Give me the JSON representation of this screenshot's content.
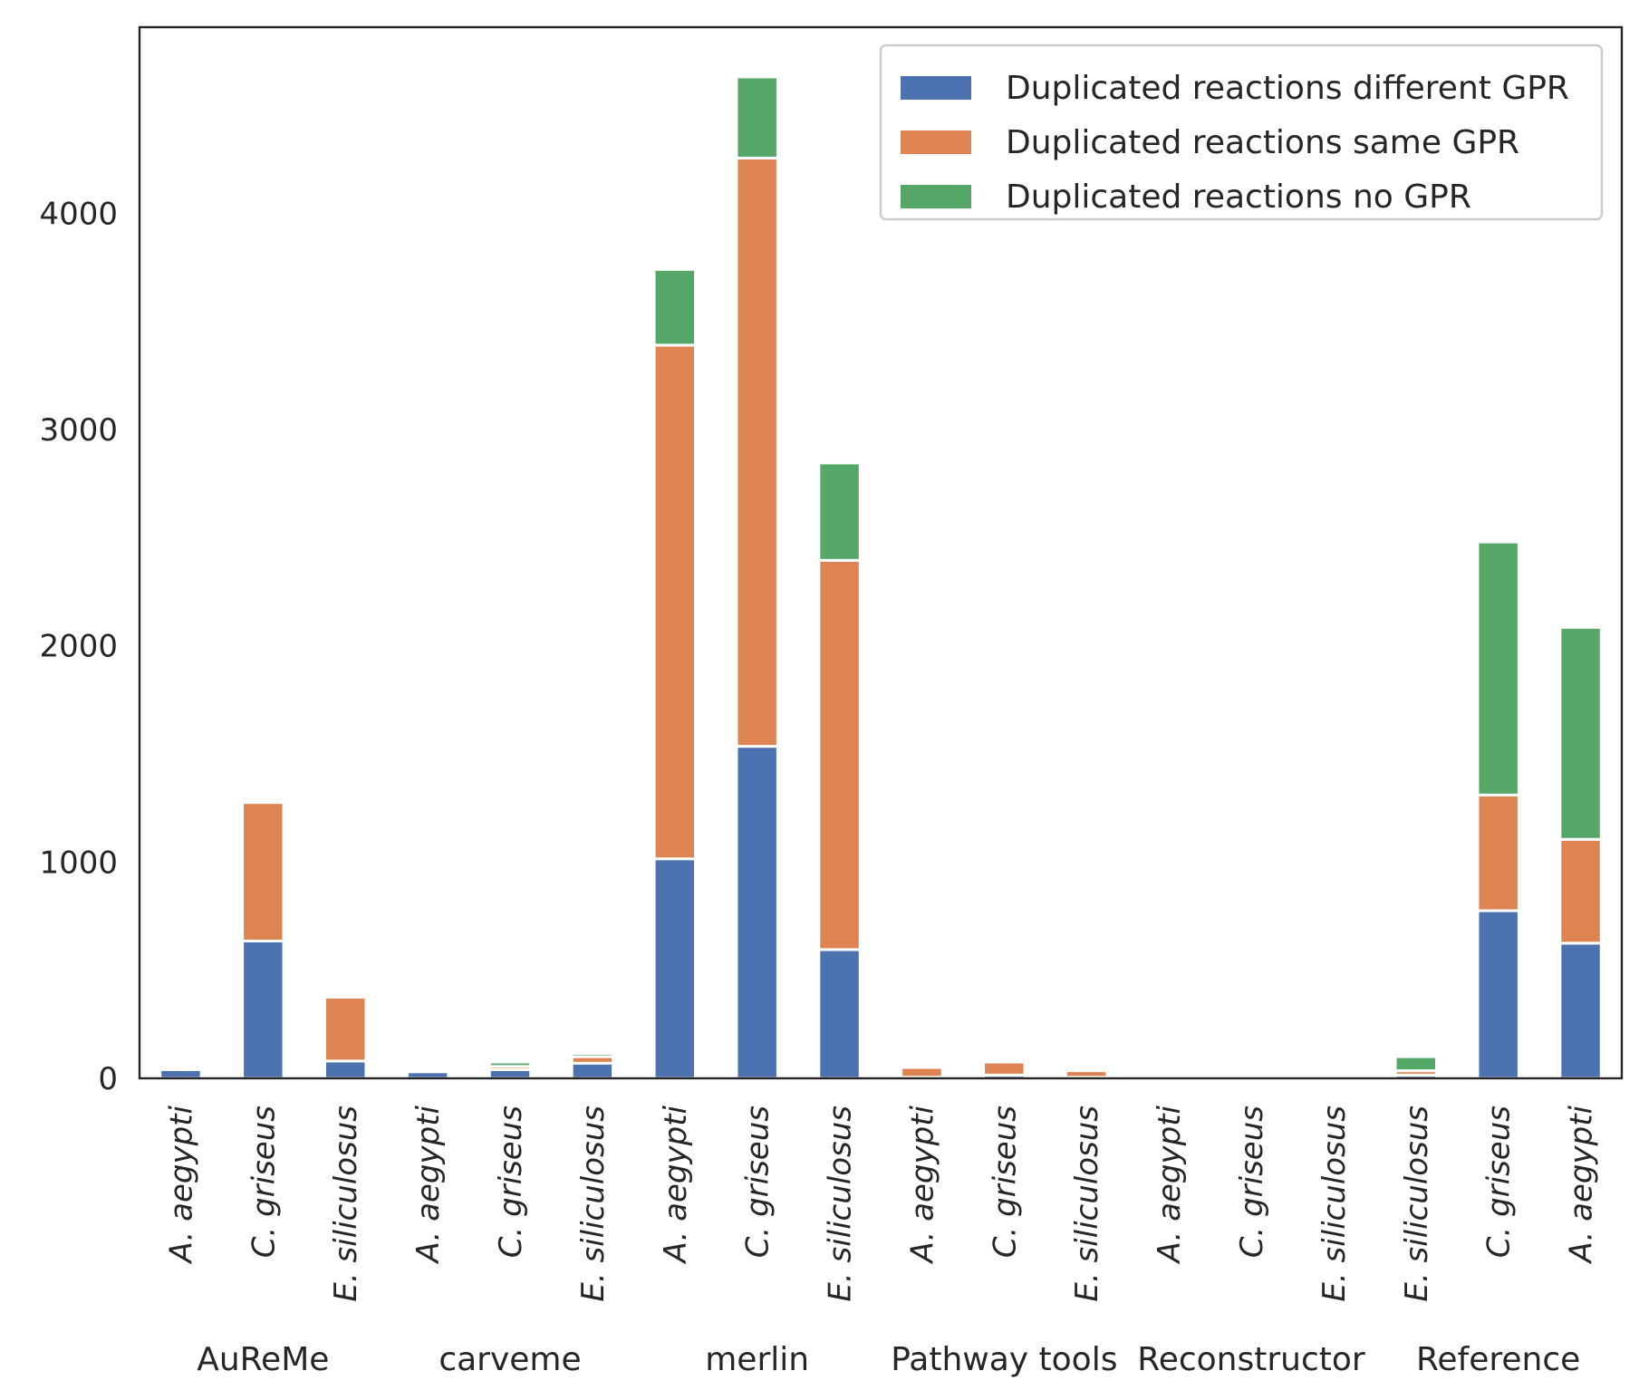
{
  "chart_data": {
    "type": "bar",
    "stacked": true,
    "title": "",
    "xlabel": "",
    "ylabel": "",
    "ylim": [
      0,
      4860
    ],
    "y_ticks": [
      0,
      1000,
      2000,
      3000,
      4000
    ],
    "grid": false,
    "legend_position": "top-right",
    "categories": [
      "A. aegypti",
      "C. griseus",
      "E. siliculosus",
      "A. aegypti",
      "C. griseus",
      "E. siliculosus",
      "A. aegypti",
      "C. griseus",
      "E. siliculosus",
      "A. aegypti",
      "C. griseus",
      "E. siliculosus",
      "A. aegypti",
      "C. griseus",
      "E. siliculosus",
      "E. siliculosus",
      "C. griseus",
      "A. aegypti"
    ],
    "groups": [
      {
        "name": "AuReMe",
        "start": 0,
        "end": 2
      },
      {
        "name": "carveme",
        "start": 3,
        "end": 5
      },
      {
        "name": "merlin",
        "start": 6,
        "end": 8
      },
      {
        "name": "Pathway tools",
        "start": 9,
        "end": 11
      },
      {
        "name": "Reconstructor",
        "start": 12,
        "end": 14
      },
      {
        "name": "Reference",
        "start": 15,
        "end": 17
      }
    ],
    "series": [
      {
        "name": "Duplicated reactions different GPR",
        "color": "#4c72b0",
        "values": [
          40,
          635,
          80,
          30,
          40,
          70,
          1015,
          1535,
          595,
          5,
          15,
          5,
          0,
          0,
          0,
          15,
          775,
          625
        ]
      },
      {
        "name": "Duplicated reactions same GPR",
        "color": "#dd8452",
        "values": [
          0,
          640,
          295,
          0,
          15,
          30,
          2375,
          2720,
          1800,
          45,
          60,
          30,
          0,
          0,
          0,
          20,
          535,
          480
        ]
      },
      {
        "name": "Duplicated reactions no GPR",
        "color": "#55a868",
        "values": [
          0,
          0,
          0,
          0,
          20,
          15,
          350,
          375,
          450,
          0,
          0,
          0,
          0,
          0,
          0,
          65,
          1170,
          980
        ]
      }
    ]
  }
}
